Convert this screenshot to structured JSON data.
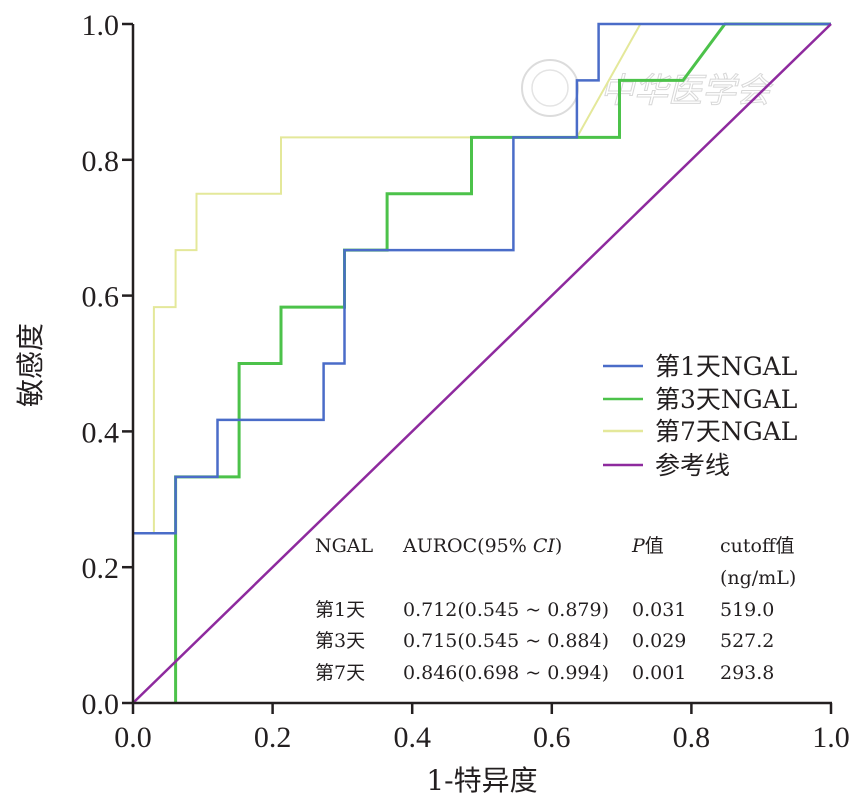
{
  "chart_data": {
    "type": "line",
    "subtype": "roc-step",
    "title": "",
    "xlabel": "1-特异度",
    "ylabel": "敏感度",
    "xlim": [
      0.0,
      1.0
    ],
    "ylim": [
      0.0,
      1.0
    ],
    "xticks": [
      "0.0",
      "0.2",
      "0.4",
      "0.6",
      "0.8",
      "1.0"
    ],
    "yticks": [
      "0.0",
      "0.2",
      "0.4",
      "0.6",
      "0.8",
      "1.0"
    ],
    "xtick_values": [
      0.0,
      0.2,
      0.4,
      0.6,
      0.8,
      1.0
    ],
    "ytick_values": [
      0.0,
      0.2,
      0.4,
      0.6,
      0.8,
      1.0
    ],
    "grid": false,
    "legend_position": "right-middle",
    "series": [
      {
        "name": "第1天NGAL",
        "color": "#4a6cc8",
        "points": [
          [
            0,
            0.25
          ],
          [
            0.061,
            0.25
          ],
          [
            0.061,
            0.333
          ],
          [
            0.121,
            0.333
          ],
          [
            0.121,
            0.417
          ],
          [
            0.273,
            0.417
          ],
          [
            0.273,
            0.5
          ],
          [
            0.303,
            0.5
          ],
          [
            0.303,
            0.667
          ],
          [
            0.545,
            0.667
          ],
          [
            0.545,
            0.833
          ],
          [
            0.636,
            0.833
          ],
          [
            0.636,
            0.917
          ],
          [
            0.667,
            0.917
          ],
          [
            0.667,
            1.0
          ],
          [
            1.0,
            1.0
          ]
        ]
      },
      {
        "name": "第3天NGAL",
        "color": "#4cc24a",
        "points": [
          [
            0.061,
            0
          ],
          [
            0.061,
            0.333
          ],
          [
            0.152,
            0.333
          ],
          [
            0.152,
            0.5
          ],
          [
            0.212,
            0.5
          ],
          [
            0.212,
            0.583
          ],
          [
            0.303,
            0.583
          ],
          [
            0.303,
            0.667
          ],
          [
            0.364,
            0.667
          ],
          [
            0.364,
            0.75
          ],
          [
            0.485,
            0.75
          ],
          [
            0.485,
            0.833
          ],
          [
            0.697,
            0.833
          ],
          [
            0.697,
            0.917
          ],
          [
            0.788,
            0.917
          ],
          [
            0.848,
            1.0
          ],
          [
            1.0,
            1.0
          ]
        ]
      },
      {
        "name": "第7天NGAL",
        "color": "#e4e89a",
        "points": [
          [
            0,
            0.25
          ],
          [
            0.03,
            0.25
          ],
          [
            0.03,
            0.583
          ],
          [
            0.061,
            0.583
          ],
          [
            0.061,
            0.667
          ],
          [
            0.091,
            0.667
          ],
          [
            0.091,
            0.75
          ],
          [
            0.212,
            0.75
          ],
          [
            0.212,
            0.833
          ],
          [
            0.636,
            0.833
          ],
          [
            0.727,
            1.0
          ],
          [
            1.0,
            1.0
          ]
        ]
      },
      {
        "name": "参考线",
        "color": "#8e2a9e",
        "points": [
          [
            0,
            0
          ],
          [
            1,
            1
          ]
        ]
      }
    ],
    "table": {
      "headers": [
        "NGAL",
        "AUROC(95% ",
        "CI",
        ")",
        "P",
        "值",
        "cutoff值",
        "(ng/mL)"
      ],
      "header_cols": {
        "ngal": "NGAL",
        "auroc_prefix": "AUROC(95% ",
        "auroc_ci": "CI",
        "auroc_suffix": ")",
        "p_letter": "P",
        "p_suffix": "值",
        "cutoff_line1": "cutoff值",
        "cutoff_line2": "(ng/mL)"
      },
      "rows": [
        {
          "day": "第1天",
          "auroc": "0.712(0.545 ~ 0.879)",
          "p": "0.031",
          "cutoff": "519.0"
        },
        {
          "day": "第3天",
          "auroc": "0.715(0.545 ~ 0.884)",
          "p": "0.029",
          "cutoff": "527.2"
        },
        {
          "day": "第7天",
          "auroc": "0.846(0.698 ~ 0.994)",
          "p": "0.001",
          "cutoff": "293.8"
        }
      ]
    },
    "watermark": "中华医学会"
  }
}
